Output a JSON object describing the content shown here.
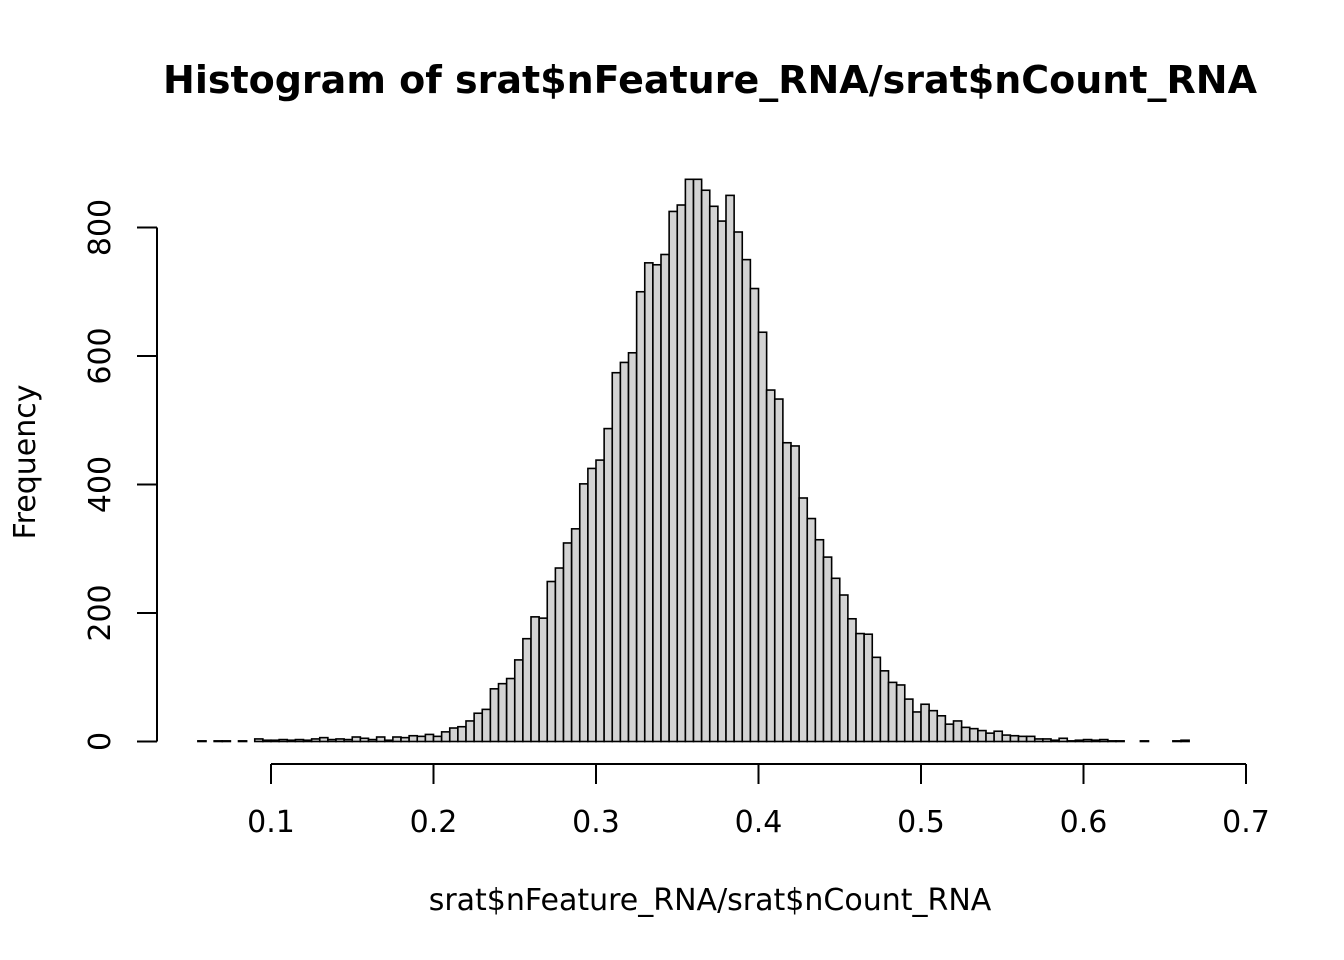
{
  "chart_data": {
    "type": "bar",
    "title": "Histogram of srat$nFeature_RNA/srat$nCount_RNA",
    "xlabel": "srat$nFeature_RNA/srat$nCount_RNA",
    "ylabel": "Frequency",
    "xlim": [
      0.03,
      0.7
    ],
    "ylim": [
      0,
      900
    ],
    "x_ticks": [
      0.1,
      0.2,
      0.3,
      0.4,
      0.5,
      0.6,
      0.7
    ],
    "x_tick_labels": [
      "0.1",
      "0.2",
      "0.3",
      "0.4",
      "0.5",
      "0.6",
      "0.7"
    ],
    "y_ticks": [
      0,
      200,
      400,
      600,
      800
    ],
    "y_tick_labels": [
      "0",
      "200",
      "400",
      "600",
      "800"
    ],
    "bin_width": 0.005,
    "bin_start": 0.055,
    "bar_color": "#d3d3d3",
    "edge_color": "#000000",
    "grid": false,
    "legend": "none",
    "values": [
      1,
      0,
      1,
      1,
      0,
      1,
      0,
      4,
      2,
      2,
      3,
      2,
      3,
      2,
      4,
      6,
      3,
      4,
      3,
      7,
      5,
      3,
      7,
      2,
      7,
      6,
      9,
      8,
      11,
      8,
      15,
      21,
      23,
      32,
      44,
      50,
      82,
      90,
      98,
      127,
      160,
      194,
      192,
      249,
      270,
      309,
      331,
      401,
      425,
      438,
      487,
      574,
      590,
      605,
      700,
      745,
      742,
      758,
      825,
      835,
      875,
      875,
      858,
      833,
      810,
      850,
      793,
      750,
      705,
      637,
      547,
      533,
      465,
      460,
      379,
      347,
      314,
      287,
      254,
      228,
      191,
      168,
      167,
      131,
      110,
      92,
      88,
      66,
      46,
      58,
      48,
      40,
      27,
      32,
      22,
      20,
      17,
      13,
      16,
      10,
      9,
      8,
      8,
      4,
      4,
      2,
      5,
      1,
      2,
      3,
      2,
      3,
      1,
      1,
      0,
      0,
      1,
      0,
      0,
      0,
      1,
      2
    ]
  }
}
